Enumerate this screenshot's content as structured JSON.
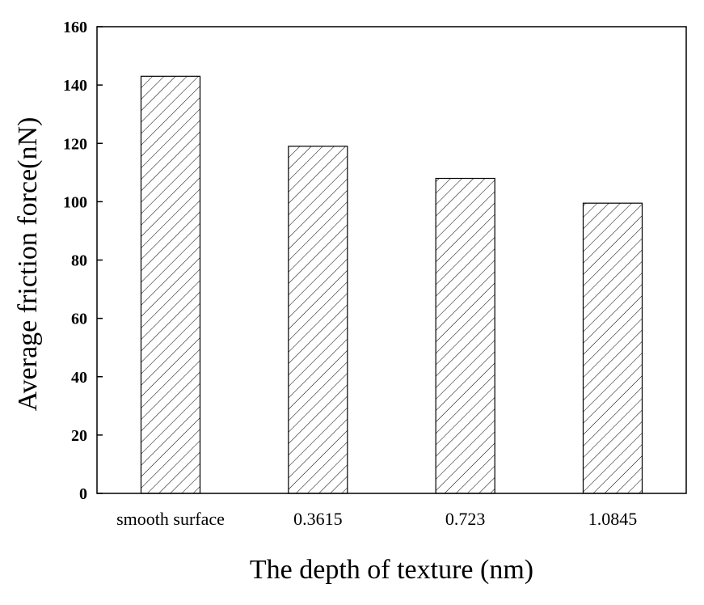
{
  "chart_data": {
    "type": "bar",
    "categories": [
      "smooth surface",
      "0.3615",
      "0.723",
      "1.0845"
    ],
    "values": [
      143,
      119,
      108,
      99.5
    ],
    "title": "",
    "xlabel": "The depth of texture (nm)",
    "ylabel": "Average friction force(nN)",
    "ylim": [
      0,
      160
    ],
    "yticks": [
      "0",
      "20",
      "40",
      "60",
      "80",
      "100",
      "120",
      "140",
      "160"
    ],
    "bar_fill": "hatched",
    "grid": false,
    "colors": {
      "bar_edge": "#000000",
      "hatch": "#000000",
      "background": "#ffffff"
    }
  }
}
